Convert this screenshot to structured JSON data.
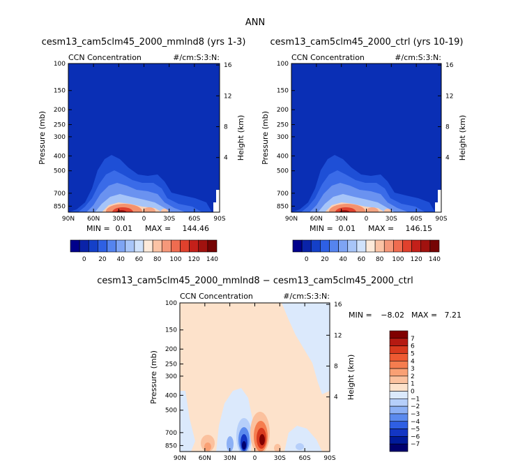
{
  "main_title": "ANN",
  "colors": {
    "background_blue": "#0a2fb5",
    "diff_background": "#fde2cb"
  },
  "colorbar_bottom": {
    "labels": [
      "0",
      "20",
      "40",
      "60",
      "80",
      "100",
      "120",
      "140"
    ],
    "colors": [
      "#00008b",
      "#0a23a8",
      "#1440c8",
      "#2e60e4",
      "#5584ef",
      "#7ea4f4",
      "#a8c5f8",
      "#d0e2fb",
      "#fdeada",
      "#fbc3a5",
      "#f5987a",
      "#ef6c50",
      "#e0412d",
      "#c4201a",
      "#a1120f",
      "#760404"
    ]
  },
  "colorbar_diff": {
    "labels": [
      "7",
      "6",
      "5",
      "4",
      "3",
      "2",
      "1",
      "0",
      "−1",
      "−2",
      "−3",
      "−4",
      "−5",
      "−6",
      "−7"
    ],
    "colors": [
      "#800000",
      "#b51a12",
      "#d93a1e",
      "#ee5a32",
      "#f57d4f",
      "#f9a074",
      "#fbc19e",
      "#fde2cb",
      "#dbe9fc",
      "#b6cffa",
      "#8cb0f5",
      "#5b8aee",
      "#2f5fe3",
      "#1336c4",
      "#001a9a",
      "#00006e"
    ]
  },
  "chart_data": [
    {
      "type": "heatmap",
      "title": "cesm13_cam5clm45_2000_mmlnd8 (yrs 1-3)",
      "left_label": "CCN Concentration",
      "right_label": "#/cm:S:3:N:",
      "ylabel": "Pressure (mb)",
      "y2label": "Height (km)",
      "x_ticks": [
        "90N",
        "60N",
        "30N",
        "0",
        "30S",
        "60S",
        "90S"
      ],
      "y_ticks": [
        "100",
        "150",
        "200",
        "250",
        "300",
        "400",
        "500",
        "700",
        "850"
      ],
      "y2_ticks": [
        "16",
        "12",
        "8",
        "4"
      ],
      "min_label": "MIN =",
      "min_value": "0.01",
      "max_label": "MAX =",
      "max_value": "144.46"
    },
    {
      "type": "heatmap",
      "title": "cesm13_cam5clm45_2000_ctrl (yrs 10-19)",
      "left_label": "CCN Concentration",
      "right_label": "#/cm:S:3:N:",
      "ylabel": "Pressure (mb)",
      "y2label": "Height (km)",
      "x_ticks": [
        "90N",
        "60N",
        "30N",
        "0",
        "30S",
        "60S",
        "90S"
      ],
      "y_ticks": [
        "100",
        "150",
        "200",
        "250",
        "300",
        "400",
        "500",
        "700",
        "850"
      ],
      "y2_ticks": [
        "16",
        "12",
        "8",
        "4"
      ],
      "min_label": "MIN =",
      "min_value": "0.01",
      "max_label": "MAX =",
      "max_value": "146.15"
    },
    {
      "type": "heatmap",
      "title": "cesm13_cam5clm45_2000_mmlnd8 − cesm13_cam5clm45_2000_ctrl",
      "left_label": "CCN Concentration",
      "right_label": "#/cm:S:3:N:",
      "ylabel": "Pressure (mb)",
      "y2label": "Height (km)",
      "x_ticks": [
        "90N",
        "60N",
        "30N",
        "0",
        "30S",
        "60S",
        "90S"
      ],
      "y_ticks": [
        "100",
        "150",
        "200",
        "250",
        "300",
        "400",
        "500",
        "700",
        "850"
      ],
      "y2_ticks": [
        "16",
        "12",
        "8",
        "4"
      ],
      "min_label": "MIN =",
      "min_value": "−8.02",
      "max_label": "MAX =",
      "max_value": "7.21"
    }
  ]
}
